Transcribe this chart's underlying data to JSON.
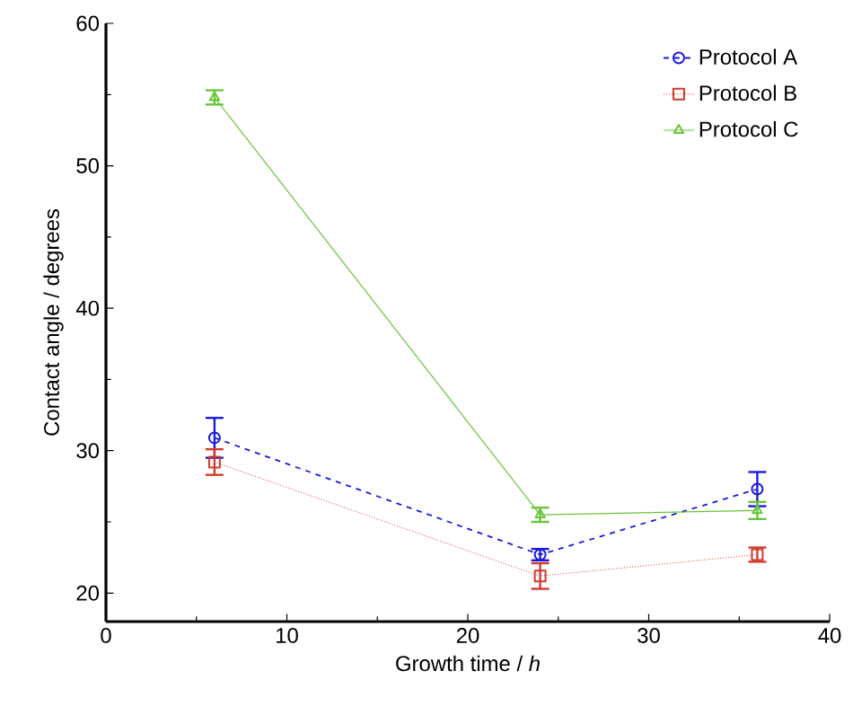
{
  "chart_data": {
    "type": "line",
    "xlabel": "Growth time / *h*",
    "ylabel": "Contact angle / degrees",
    "x": [
      6,
      24,
      36
    ],
    "xlim": [
      0,
      40
    ],
    "xticks": [
      0,
      10,
      20,
      30,
      40
    ],
    "ylim": [
      18,
      60
    ],
    "yticks": [
      20,
      30,
      40,
      50,
      60
    ],
    "legend": "top right",
    "grid": false,
    "series": [
      {
        "name": "Protocol A",
        "color": "#1a1adf",
        "marker": "circle",
        "line_style": "dashed",
        "values": [
          30.9,
          22.7,
          27.3
        ],
        "errors": [
          1.4,
          0.4,
          1.2
        ]
      },
      {
        "name": "Protocol B",
        "color": "#d03a2e",
        "marker": "square",
        "line_style": "dotted",
        "values": [
          29.2,
          21.2,
          22.7
        ],
        "errors": [
          0.9,
          0.9,
          0.5
        ]
      },
      {
        "name": "Protocol C",
        "color": "#6ac43a",
        "marker": "triangle",
        "line_style": "solid",
        "values": [
          54.8,
          25.5,
          25.8
        ],
        "errors": [
          0.5,
          0.5,
          0.6
        ]
      }
    ]
  }
}
